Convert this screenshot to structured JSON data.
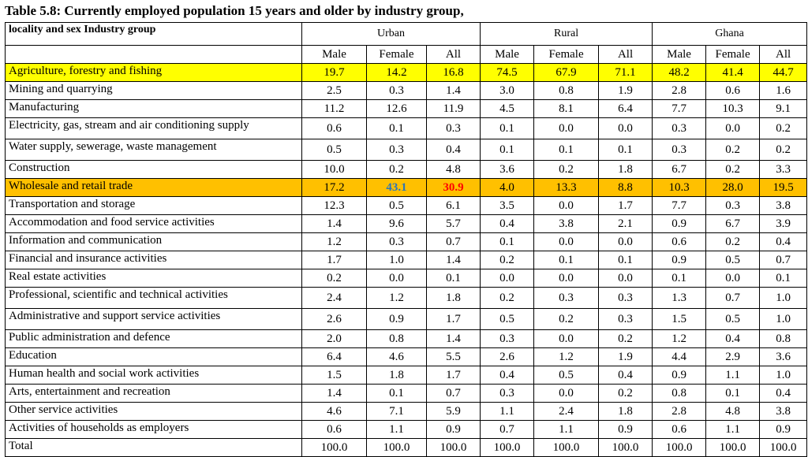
{
  "title": "Table 5.8: Currently employed population 15 years and older by industry group,",
  "header": {
    "corner": "locality and sex Industry group",
    "groups": [
      "Urban",
      "Rural",
      "Ghana"
    ],
    "sub": [
      "Male",
      "Female",
      "All",
      "Male",
      "Female",
      "All",
      "Male",
      "Female",
      "All"
    ]
  },
  "rows": [
    {
      "label": "Agriculture, forestry and fishing",
      "v": [
        "19.7",
        "14.2",
        "16.8",
        "74.5",
        "67.9",
        "71.1",
        "48.2",
        "41.4",
        "44.7"
      ]
    },
    {
      "label": "Mining and quarrying",
      "v": [
        "2.5",
        "0.3",
        "1.4",
        "3.0",
        "0.8",
        "1.9",
        "2.8",
        "0.6",
        "1.6"
      ]
    },
    {
      "label": "Manufacturing",
      "v": [
        "11.2",
        "12.6",
        "11.9",
        "4.5",
        "8.1",
        "6.4",
        "7.7",
        "10.3",
        "9.1"
      ]
    },
    {
      "label": "Electricity, gas, stream and air conditioning supply",
      "v": [
        "0.6",
        "0.1",
        "0.3",
        "0.1",
        "0.0",
        "0.0",
        "0.3",
        "0.0",
        "0.2"
      ]
    },
    {
      "label": "Water supply, sewerage, waste management",
      "v": [
        "0.5",
        "0.3",
        "0.4",
        "0.1",
        "0.1",
        "0.1",
        "0.3",
        "0.2",
        "0.2"
      ]
    },
    {
      "label": "Construction",
      "v": [
        "10.0",
        "0.2",
        "4.8",
        "3.6",
        "0.2",
        "1.8",
        "6.7",
        "0.2",
        "3.3"
      ]
    },
    {
      "label": "Wholesale and retail trade",
      "v": [
        "17.2",
        "43.1",
        "30.9",
        "4.0",
        "13.3",
        "8.8",
        "10.3",
        "28.0",
        "19.5"
      ]
    },
    {
      "label": "Transportation and storage",
      "v": [
        "12.3",
        "0.5",
        "6.1",
        "3.5",
        "0.0",
        "1.7",
        "7.7",
        "0.3",
        "3.8"
      ]
    },
    {
      "label": "Accommodation and food service activities",
      "v": [
        "1.4",
        "9.6",
        "5.7",
        "0.4",
        "3.8",
        "2.1",
        "0.9",
        "6.7",
        "3.9"
      ]
    },
    {
      "label": "Information and communication",
      "v": [
        "1.2",
        "0.3",
        "0.7",
        "0.1",
        "0.0",
        "0.0",
        "0.6",
        "0.2",
        "0.4"
      ]
    },
    {
      "label": "Financial and insurance activities",
      "v": [
        "1.7",
        "1.0",
        "1.4",
        "0.2",
        "0.1",
        "0.1",
        "0.9",
        "0.5",
        "0.7"
      ]
    },
    {
      "label": "Real estate activities",
      "v": [
        "0.2",
        "0.0",
        "0.1",
        "0.0",
        "0.0",
        "0.0",
        "0.1",
        "0.0",
        "0.1"
      ]
    },
    {
      "label": "Professional, scientific and technical activities",
      "v": [
        "2.4",
        "1.2",
        "1.8",
        "0.2",
        "0.3",
        "0.3",
        "1.3",
        "0.7",
        "1.0"
      ]
    },
    {
      "label": "Administrative and support service activities",
      "v": [
        "2.6",
        "0.9",
        "1.7",
        "0.5",
        "0.2",
        "0.3",
        "1.5",
        "0.5",
        "1.0"
      ]
    },
    {
      "label": "Public administration and defence",
      "v": [
        "2.0",
        "0.8",
        "1.4",
        "0.3",
        "0.0",
        "0.2",
        "1.2",
        "0.4",
        "0.8"
      ]
    },
    {
      "label": "Education",
      "v": [
        "6.4",
        "4.6",
        "5.5",
        "2.6",
        "1.2",
        "1.9",
        "4.4",
        "2.9",
        "3.6"
      ]
    },
    {
      "label": "Human health and social work activities",
      "v": [
        "1.5",
        "1.8",
        "1.7",
        "0.4",
        "0.5",
        "0.4",
        "0.9",
        "1.1",
        "1.0"
      ]
    },
    {
      "label": "Arts, entertainment and recreation",
      "v": [
        "1.4",
        "0.1",
        "0.7",
        "0.3",
        "0.0",
        "0.2",
        "0.8",
        "0.1",
        "0.4"
      ]
    },
    {
      "label": "Other service activities",
      "v": [
        "4.6",
        "7.1",
        "5.9",
        "1.1",
        "2.4",
        "1.8",
        "2.8",
        "4.8",
        "3.8"
      ]
    },
    {
      "label": "Activities of households as employers",
      "v": [
        "0.6",
        "1.1",
        "0.9",
        "0.7",
        "1.1",
        "0.9",
        "0.6",
        "1.1",
        "0.9"
      ]
    },
    {
      "label": "Total",
      "v": [
        "100.0",
        "100.0",
        "100.0",
        "100.0",
        "100.0",
        "100.0",
        "100.0",
        "100.0",
        "100.0"
      ]
    }
  ],
  "highlight_colors": {
    "yellow": "#ffff00",
    "orange": "#ffc000",
    "blue_text": "#2e75b6",
    "red_text": "#ff0000"
  }
}
